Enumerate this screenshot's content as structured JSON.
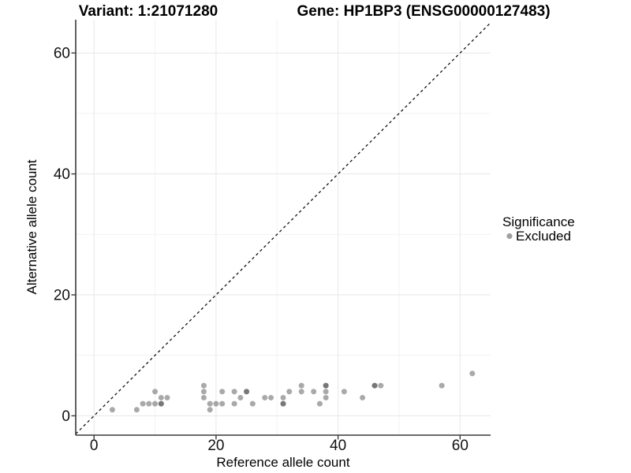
{
  "chart_data": {
    "type": "scatter",
    "title_left": "Variant: 1:21071280",
    "title_right": "Gene: HP1BP3 (ENSG00000127483)",
    "xlabel": "Reference allele count",
    "ylabel": "Alternative allele count",
    "xlim": [
      -3.0,
      65.0
    ],
    "ylim": [
      -3.2,
      65.5
    ],
    "x_ticks": [
      0,
      20,
      40,
      60
    ],
    "y_ticks": [
      0,
      20,
      40,
      60
    ],
    "x_minor_ticks": [
      10,
      30,
      50
    ],
    "y_minor_ticks": [
      10,
      30,
      50
    ],
    "grid": "on",
    "identity_line": {
      "type": "dashed",
      "equation": "y = x",
      "from": -3,
      "to": 64.9
    },
    "legend": {
      "position": "right",
      "title": "Significance",
      "items": [
        {
          "label": "Excluded",
          "marker": "point",
          "color": "#a0a0a0"
        }
      ]
    },
    "series": [
      {
        "name": "Excluded",
        "points": [
          [
            3,
            1
          ],
          [
            7,
            1
          ],
          [
            8,
            2
          ],
          [
            9,
            2
          ],
          [
            10,
            2
          ],
          [
            11,
            2
          ],
          [
            10,
            4
          ],
          [
            11,
            3
          ],
          [
            12,
            3
          ],
          [
            18,
            5
          ],
          [
            18,
            4
          ],
          [
            18,
            3
          ],
          [
            19,
            1
          ],
          [
            19,
            2
          ],
          [
            20,
            2
          ],
          [
            21,
            2
          ],
          [
            21,
            4
          ],
          [
            23,
            2
          ],
          [
            23,
            4
          ],
          [
            24,
            3
          ],
          [
            25,
            4
          ],
          [
            26,
            2
          ],
          [
            28,
            3
          ],
          [
            29,
            3
          ],
          [
            31,
            2
          ],
          [
            31,
            3
          ],
          [
            32,
            4
          ],
          [
            34,
            4
          ],
          [
            34,
            5
          ],
          [
            36,
            4
          ],
          [
            37,
            2
          ],
          [
            38,
            3
          ],
          [
            38,
            4
          ],
          [
            38,
            5
          ],
          [
            41,
            4
          ],
          [
            44,
            3
          ],
          [
            46,
            5
          ],
          [
            47,
            5
          ],
          [
            57,
            5
          ],
          [
            62,
            7
          ]
        ],
        "overplotted_points": [
          [
            11,
            2
          ],
          [
            25,
            4
          ],
          [
            31,
            2
          ],
          [
            38,
            5
          ],
          [
            46,
            5
          ]
        ]
      }
    ],
    "colors": {
      "point_fill": "#333333",
      "point_opacity": 0.42,
      "legend_point": "#a0a0a0",
      "grid_major": "#e7e7e7",
      "grid_minor": "#f1f1f1",
      "axis_line": "#3a3a3a",
      "identity_line": "#111111",
      "background": "#ffffff"
    }
  }
}
